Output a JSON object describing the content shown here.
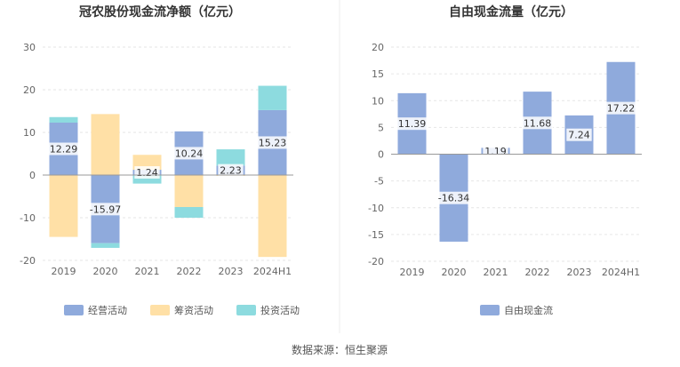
{
  "chart_data": [
    {
      "type": "bar",
      "stacked": true,
      "title": "冠农股份现金流净额（亿元）",
      "categories": [
        "2019",
        "2020",
        "2021",
        "2022",
        "2023",
        "2024H1"
      ],
      "ylim": [
        -20,
        30
      ],
      "yticks": [
        30,
        20,
        10,
        0,
        -10,
        -20
      ],
      "grid": true,
      "series": [
        {
          "name": "经营活动",
          "color": "#8faadc",
          "values": [
            12.29,
            -15.97,
            1.24,
            10.24,
            2.23,
            15.23
          ]
        },
        {
          "name": "筹资活动",
          "color": "#ffe0a6",
          "values": [
            -14.5,
            14.3,
            3.5,
            -7.5,
            -0.2,
            -19.2
          ]
        },
        {
          "name": "投资活动",
          "color": "#8ddbdf",
          "values": [
            1.3,
            -1.1,
            -2.0,
            -2.5,
            3.8,
            5.7
          ]
        }
      ],
      "data_labels": [
        "12.29",
        "-15.97",
        "1.24",
        "10.24",
        "2.23",
        "15.23"
      ],
      "legend_position": "bottom"
    },
    {
      "type": "bar",
      "title": "自由现金流量（亿元）",
      "categories": [
        "2019",
        "2020",
        "2021",
        "2022",
        "2023",
        "2024H1"
      ],
      "ylim": [
        -20,
        20
      ],
      "yticks": [
        20,
        15,
        10,
        5,
        0,
        -5,
        -10,
        -15,
        -20
      ],
      "grid": true,
      "series": [
        {
          "name": "自由现金流",
          "color": "#8faadc",
          "values": [
            11.39,
            -16.34,
            1.19,
            11.68,
            7.24,
            17.22
          ]
        }
      ],
      "data_labels": [
        "11.39",
        "-16.34",
        "1.19",
        "11.68",
        "7.24",
        "17.22"
      ],
      "legend_position": "bottom"
    }
  ],
  "footer": {
    "source": "数据来源：恒生聚源"
  }
}
